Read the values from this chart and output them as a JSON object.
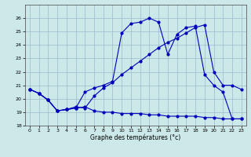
{
  "title": "Graphe des températures (°c)",
  "xlim_min": -0.5,
  "xlim_max": 23.5,
  "ylim_min": 18,
  "ylim_max": 27,
  "yticks": [
    18,
    19,
    20,
    21,
    22,
    23,
    24,
    25,
    26
  ],
  "xticks": [
    0,
    1,
    2,
    3,
    4,
    5,
    6,
    7,
    8,
    9,
    10,
    11,
    12,
    13,
    14,
    15,
    16,
    17,
    18,
    19,
    20,
    21,
    22,
    23
  ],
  "bg_color": "#cce8e8",
  "grid_color": "#99bbcc",
  "line_color": "#0000bb",
  "line1_x": [
    0,
    1,
    2,
    3,
    4,
    5,
    6,
    7,
    8,
    9,
    10,
    11,
    12,
    13,
    14,
    15,
    16,
    17,
    18,
    19,
    20,
    21,
    22,
    23
  ],
  "line1_y": [
    20.7,
    20.4,
    19.9,
    19.1,
    19.2,
    19.3,
    19.4,
    19.1,
    19.0,
    19.0,
    18.9,
    18.9,
    18.9,
    18.8,
    18.8,
    18.7,
    18.7,
    18.7,
    18.7,
    18.6,
    18.6,
    18.5,
    18.5,
    18.5
  ],
  "line2_x": [
    0,
    1,
    2,
    3,
    4,
    5,
    6,
    7,
    8,
    9,
    10,
    11,
    12,
    13,
    14,
    15,
    16,
    17,
    18,
    19,
    20,
    21,
    22,
    23
  ],
  "line2_y": [
    20.7,
    20.4,
    19.9,
    19.1,
    19.2,
    19.3,
    20.5,
    20.8,
    21.0,
    21.3,
    24.9,
    25.6,
    25.7,
    26.0,
    25.7,
    23.3,
    24.8,
    25.3,
    25.4,
    21.8,
    21.0,
    20.5,
    18.5,
    18.5
  ],
  "line3_x": [
    0,
    1,
    2,
    3,
    4,
    5,
    6,
    7,
    8,
    9,
    10,
    11,
    12,
    13,
    14,
    15,
    16,
    17,
    18,
    19,
    20,
    21,
    22,
    23
  ],
  "line3_y": [
    20.7,
    20.4,
    19.9,
    19.1,
    19.2,
    19.4,
    19.3,
    20.2,
    20.8,
    21.2,
    21.8,
    22.3,
    22.8,
    23.3,
    23.8,
    24.2,
    24.5,
    24.9,
    25.3,
    25.5,
    22.0,
    21.0,
    21.0,
    20.7
  ]
}
